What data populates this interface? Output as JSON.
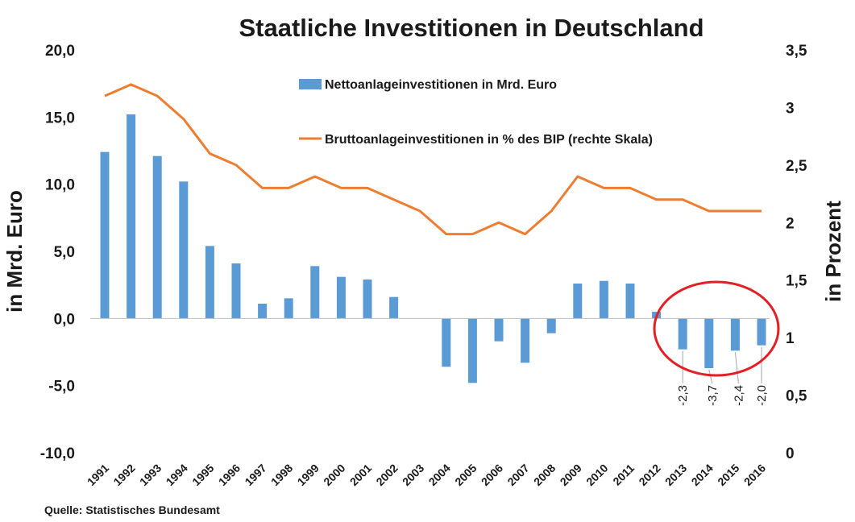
{
  "chart_data": {
    "type": "bar-line",
    "title": "Staatliche Investitionen in Deutschland",
    "source": "Quelle: Statistisches Bundesamt",
    "categories": [
      "1991",
      "1992",
      "1993",
      "1994",
      "1995",
      "1996",
      "1997",
      "1998",
      "1999",
      "2000",
      "2001",
      "2002",
      "2003",
      "2004",
      "2005",
      "2006",
      "2007",
      "2008",
      "2009",
      "2010",
      "2011",
      "2012",
      "2013",
      "2014",
      "2015",
      "2016"
    ],
    "left_axis": {
      "label": "in Mrd. Euro",
      "range": [
        -10,
        20
      ],
      "ticks": [
        20,
        15,
        10,
        5,
        0,
        -5,
        -10
      ],
      "tick_labels": [
        "20,0",
        "15,0",
        "10,0",
        "5,0",
        "0,0",
        "-5,0",
        "-10,0"
      ]
    },
    "right_axis": {
      "label": "in Prozent",
      "range": [
        0,
        3.5
      ],
      "ticks": [
        3.5,
        3,
        2.5,
        2,
        1.5,
        1,
        0.5,
        0
      ],
      "tick_labels": [
        "3,5",
        "3",
        "2,5",
        "2",
        "1,5",
        "1",
        "0,5",
        "0"
      ]
    },
    "series": [
      {
        "name": "Nettoanlageinvestitionen in Mrd. Euro",
        "kind": "bar",
        "axis": "left",
        "color": "#5b9bd5",
        "values": [
          12.4,
          15.2,
          12.1,
          10.2,
          5.4,
          4.1,
          1.1,
          1.5,
          3.9,
          3.1,
          2.9,
          1.6,
          0.0,
          -3.6,
          -4.8,
          -1.7,
          -3.3,
          -1.1,
          2.6,
          2.8,
          2.6,
          0.5,
          -2.3,
          -3.7,
          -2.4,
          -2.0
        ]
      },
      {
        "name": "Bruttoanlageinvestitionen in % des BIP (rechte Skala)",
        "kind": "line",
        "axis": "right",
        "color": "#ed7d31",
        "values": [
          3.1,
          3.2,
          3.1,
          2.9,
          2.6,
          2.5,
          2.3,
          2.3,
          2.4,
          2.3,
          2.3,
          2.2,
          2.1,
          1.9,
          1.9,
          2.0,
          1.9,
          2.1,
          2.4,
          2.3,
          2.3,
          2.2,
          2.2,
          2.1,
          2.1,
          2.1
        ]
      }
    ],
    "data_labels": [
      {
        "category": "2013",
        "text": "-2,3"
      },
      {
        "category": "2014",
        "text": "-3,7"
      },
      {
        "category": "2015",
        "text": "-2,4"
      },
      {
        "category": "2016",
        "text": "-2,0"
      }
    ],
    "highlight_color": "#e31e24",
    "grid": false,
    "legend_position": "top-center"
  }
}
